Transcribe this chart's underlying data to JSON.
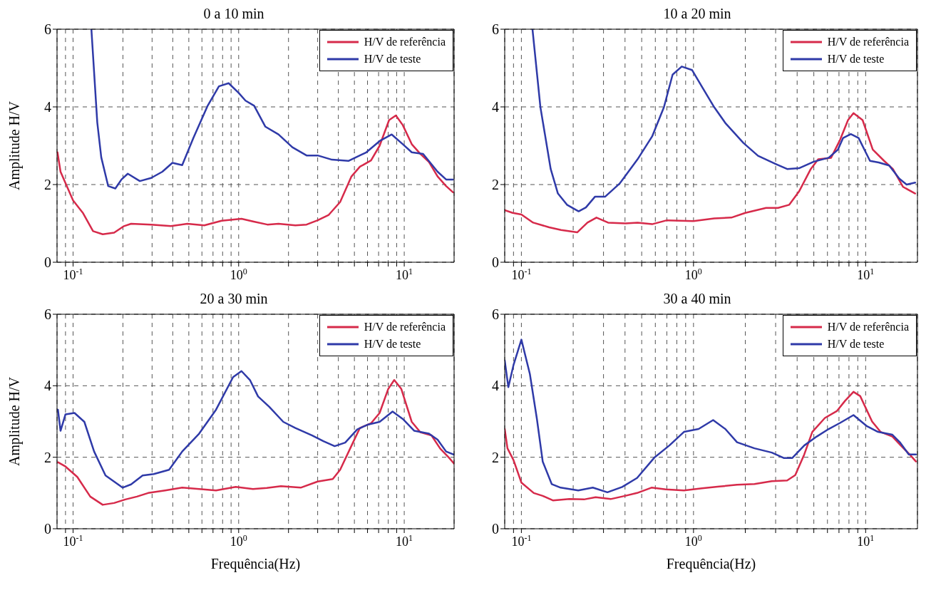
{
  "chart_data": [
    {
      "type": "line",
      "title": "0 a 10 min",
      "ylabel": "Amplitude H/V",
      "log": "x",
      "grid": true,
      "legend": "top right",
      "xlim": [
        0.08,
        20
      ],
      "ylim": [
        0,
        6
      ],
      "yticks": [
        0,
        2,
        4,
        6
      ],
      "xticks": [
        {
          "value": 0.09,
          "label": null
        },
        {
          "value": 0.1,
          "label": "10$^{-1}$"
        },
        {
          "value": 0.2,
          "label": null
        },
        {
          "value": 0.3,
          "label": null
        },
        {
          "value": 0.4,
          "label": null
        },
        {
          "value": 0.5,
          "label": null
        },
        {
          "value": 0.6,
          "label": null
        },
        {
          "value": 0.7,
          "label": null
        },
        {
          "value": 0.8,
          "label": null
        },
        {
          "value": 0.9,
          "label": null
        },
        {
          "value": 1,
          "label": "10$^{0}$"
        },
        {
          "value": 2,
          "label": null
        },
        {
          "value": 3,
          "label": null
        },
        {
          "value": 4,
          "label": null
        },
        {
          "value": 5,
          "label": null
        },
        {
          "value": 6,
          "label": null
        },
        {
          "value": 7,
          "label": null
        },
        {
          "value": 8,
          "label": null
        },
        {
          "value": 9,
          "label": null
        },
        {
          "value": 10,
          "label": "10$^{1}$"
        }
      ],
      "series": [
        {
          "name": "H/V de referência",
          "color": "#d62a4a",
          "x": [
            0.0805,
            0.084,
            0.1,
            0.115,
            0.132,
            0.151,
            0.177,
            0.203,
            0.224,
            0.296,
            0.39,
            0.49,
            0.62,
            0.79,
            1.04,
            1.22,
            1.49,
            1.74,
            2.2,
            2.57,
            3.0,
            3.5,
            4.1,
            4.8,
            5.4,
            6.3,
            7.1,
            8.1,
            8.9,
            9.8,
            11.1,
            12.5,
            14.1,
            15.9,
            17.9,
            19.7
          ],
          "values": [
            2.83,
            2.33,
            1.59,
            1.26,
            0.8,
            0.72,
            0.76,
            0.93,
            0.99,
            0.97,
            0.93,
            0.99,
            0.95,
            1.07,
            1.12,
            1.05,
            0.97,
            0.99,
            0.95,
            0.97,
            1.08,
            1.22,
            1.55,
            2.21,
            2.46,
            2.62,
            3.0,
            3.66,
            3.78,
            3.53,
            3.04,
            2.79,
            2.58,
            2.21,
            1.96,
            1.8
          ]
        },
        {
          "name": "H/V de teste",
          "color": "#2f3aa8",
          "x": [
            0.129,
            0.14,
            0.148,
            0.163,
            0.18,
            0.196,
            0.214,
            0.253,
            0.296,
            0.346,
            0.398,
            0.456,
            0.533,
            0.65,
            0.76,
            0.87,
            1.0,
            1.1,
            1.24,
            1.45,
            1.74,
            2.11,
            2.57,
            3.0,
            3.66,
            4.6,
            5.9,
            7.1,
            8.4,
            9.8,
            11.1,
            13.0,
            15.9,
            17.9,
            19.7
          ],
          "values": [
            6.0,
            3.6,
            2.7,
            1.96,
            1.9,
            2.13,
            2.28,
            2.09,
            2.17,
            2.33,
            2.56,
            2.5,
            3.2,
            4.03,
            4.53,
            4.61,
            4.36,
            4.16,
            4.03,
            3.49,
            3.29,
            2.96,
            2.75,
            2.75,
            2.64,
            2.61,
            2.83,
            3.12,
            3.29,
            3.04,
            2.83,
            2.79,
            2.33,
            2.13,
            2.13
          ]
        }
      ]
    },
    {
      "type": "line",
      "title": "10 a 20 min",
      "log": "x",
      "grid": true,
      "legend": "top right",
      "xlim": [
        0.08,
        20
      ],
      "ylim": [
        0,
        6
      ],
      "yticks": [
        0,
        2,
        4,
        6
      ],
      "xticks": [
        {
          "value": 0.09,
          "label": null
        },
        {
          "value": 0.1,
          "label": "10$^{-1}$"
        },
        {
          "value": 0.2,
          "label": null
        },
        {
          "value": 0.3,
          "label": null
        },
        {
          "value": 0.4,
          "label": null
        },
        {
          "value": 0.5,
          "label": null
        },
        {
          "value": 0.6,
          "label": null
        },
        {
          "value": 0.7,
          "label": null
        },
        {
          "value": 0.8,
          "label": null
        },
        {
          "value": 0.9,
          "label": null
        },
        {
          "value": 1,
          "label": "10$^{0}$"
        },
        {
          "value": 2,
          "label": null
        },
        {
          "value": 3,
          "label": null
        },
        {
          "value": 4,
          "label": null
        },
        {
          "value": 5,
          "label": null
        },
        {
          "value": 6,
          "label": null
        },
        {
          "value": 7,
          "label": null
        },
        {
          "value": 8,
          "label": null
        },
        {
          "value": 9,
          "label": null
        },
        {
          "value": 10,
          "label": "10$^{1}$"
        }
      ],
      "series": [
        {
          "name": "H/V de referência",
          "color": "#d62a4a",
          "x": [
            0.08,
            0.089,
            0.1,
            0.117,
            0.145,
            0.17,
            0.211,
            0.242,
            0.273,
            0.319,
            0.403,
            0.473,
            0.575,
            0.7,
            1.0,
            1.32,
            1.66,
            2.0,
            2.64,
            3.1,
            3.6,
            4.1,
            4.8,
            5.3,
            6.3,
            7.1,
            7.9,
            8.5,
            9.6,
            11.0,
            12.8,
            14.4,
            16.5,
            19.4
          ],
          "values": [
            1.34,
            1.27,
            1.23,
            1.02,
            0.9,
            0.83,
            0.77,
            1.02,
            1.15,
            1.02,
            1.0,
            1.02,
            0.98,
            1.08,
            1.06,
            1.13,
            1.15,
            1.27,
            1.4,
            1.4,
            1.48,
            1.82,
            2.4,
            2.65,
            2.69,
            3.15,
            3.66,
            3.84,
            3.66,
            2.9,
            2.61,
            2.4,
            1.94,
            1.77
          ]
        },
        {
          "name": "H/V de teste",
          "color": "#2f3aa8",
          "x": [
            0.116,
            0.129,
            0.148,
            0.163,
            0.184,
            0.215,
            0.237,
            0.268,
            0.307,
            0.373,
            0.473,
            0.575,
            0.673,
            0.756,
            0.854,
            0.98,
            1.13,
            1.32,
            1.54,
            1.95,
            2.37,
            3.0,
            3.5,
            4.1,
            5.0,
            6.1,
            6.9,
            7.4,
            8.2,
            9.1,
            10.6,
            11.9,
            13.7,
            15.7,
            17.3,
            19.4
          ],
          "values": [
            6.0,
            3.99,
            2.4,
            1.77,
            1.48,
            1.31,
            1.41,
            1.69,
            1.69,
            2.03,
            2.65,
            3.24,
            3.99,
            4.83,
            5.04,
            4.95,
            4.49,
            3.99,
            3.57,
            3.07,
            2.74,
            2.53,
            2.4,
            2.42,
            2.59,
            2.69,
            2.9,
            3.2,
            3.3,
            3.2,
            2.61,
            2.57,
            2.49,
            2.15,
            2.0,
            2.05
          ]
        }
      ]
    },
    {
      "type": "line",
      "title": "20 a 30 min",
      "xlabel": "Frequência(Hz)",
      "ylabel": "Amplitude H/V",
      "log": "x",
      "grid": true,
      "legend": "top right",
      "xlim": [
        0.08,
        20
      ],
      "ylim": [
        0,
        6
      ],
      "yticks": [
        0,
        2,
        4,
        6
      ],
      "xticks": [
        {
          "value": 0.09,
          "label": null
        },
        {
          "value": 0.1,
          "label": "10$^{-1}$"
        },
        {
          "value": 0.2,
          "label": null
        },
        {
          "value": 0.3,
          "label": null
        },
        {
          "value": 0.4,
          "label": null
        },
        {
          "value": 0.5,
          "label": null
        },
        {
          "value": 0.6,
          "label": null
        },
        {
          "value": 0.7,
          "label": null
        },
        {
          "value": 0.8,
          "label": null
        },
        {
          "value": 0.9,
          "label": null
        },
        {
          "value": 1,
          "label": "10$^{0}$"
        },
        {
          "value": 2,
          "label": null
        },
        {
          "value": 3,
          "label": null
        },
        {
          "value": 4,
          "label": null
        },
        {
          "value": 5,
          "label": null
        },
        {
          "value": 6,
          "label": null
        },
        {
          "value": 7,
          "label": null
        },
        {
          "value": 8,
          "label": null
        },
        {
          "value": 9,
          "label": null
        },
        {
          "value": 10,
          "label": "10$^{1}$"
        }
      ],
      "series": [
        {
          "name": "H/V de referência",
          "color": "#d62a4a",
          "x": [
            0.081,
            0.09,
            0.106,
            0.127,
            0.151,
            0.177,
            0.207,
            0.243,
            0.284,
            0.36,
            0.456,
            0.577,
            0.73,
            0.96,
            1.22,
            1.48,
            1.8,
            2.37,
            3.0,
            3.7,
            4.1,
            4.9,
            5.4,
            6.3,
            7.1,
            8.0,
            8.7,
            9.6,
            11.1,
            12.5,
            14.6,
            16.5,
            18.6,
            20
          ],
          "values": [
            1.86,
            1.74,
            1.45,
            0.9,
            0.67,
            0.72,
            0.82,
            0.9,
            1.0,
            1.07,
            1.15,
            1.11,
            1.07,
            1.17,
            1.11,
            1.14,
            1.19,
            1.15,
            1.32,
            1.39,
            1.65,
            2.41,
            2.82,
            2.95,
            3.24,
            3.91,
            4.16,
            3.91,
            2.99,
            2.7,
            2.61,
            2.24,
            1.99,
            1.82
          ]
        },
        {
          "name": "H/V de teste",
          "color": "#2f3aa8",
          "x": [
            0.081,
            0.084,
            0.09,
            0.102,
            0.117,
            0.134,
            0.157,
            0.199,
            0.224,
            0.263,
            0.307,
            0.38,
            0.456,
            0.577,
            0.73,
            0.925,
            1.04,
            1.17,
            1.31,
            1.53,
            1.86,
            2.2,
            2.78,
            3.25,
            3.8,
            4.4,
            5.2,
            6.0,
            7.1,
            8.5,
            9.8,
            11.5,
            14.1,
            15.9,
            17.9,
            20
          ],
          "values": [
            3.33,
            2.74,
            3.2,
            3.24,
            2.99,
            2.16,
            1.49,
            1.15,
            1.24,
            1.49,
            1.53,
            1.65,
            2.16,
            2.66,
            3.33,
            4.24,
            4.41,
            4.16,
            3.7,
            3.41,
            2.99,
            2.82,
            2.61,
            2.45,
            2.31,
            2.41,
            2.78,
            2.91,
            2.99,
            3.28,
            3.07,
            2.74,
            2.66,
            2.49,
            2.16,
            2.07
          ]
        }
      ]
    },
    {
      "type": "line",
      "title": "30 a 40 min",
      "xlabel": "Frequência(Hz)",
      "log": "x",
      "grid": true,
      "legend": "top right",
      "xlim": [
        0.08,
        20
      ],
      "ylim": [
        0,
        6
      ],
      "yticks": [
        0,
        2,
        4,
        6
      ],
      "xticks": [
        {
          "value": 0.09,
          "label": null
        },
        {
          "value": 0.1,
          "label": "10$^{-1}$"
        },
        {
          "value": 0.2,
          "label": null
        },
        {
          "value": 0.3,
          "label": null
        },
        {
          "value": 0.4,
          "label": null
        },
        {
          "value": 0.5,
          "label": null
        },
        {
          "value": 0.6,
          "label": null
        },
        {
          "value": 0.7,
          "label": null
        },
        {
          "value": 0.8,
          "label": null
        },
        {
          "value": 0.9,
          "label": null
        },
        {
          "value": 1,
          "label": "10$^{0}$"
        },
        {
          "value": 2,
          "label": null
        },
        {
          "value": 3,
          "label": null
        },
        {
          "value": 4,
          "label": null
        },
        {
          "value": 5,
          "label": null
        },
        {
          "value": 6,
          "label": null
        },
        {
          "value": 7,
          "label": null
        },
        {
          "value": 8,
          "label": null
        },
        {
          "value": 9,
          "label": null
        },
        {
          "value": 10,
          "label": "10$^{1}$"
        }
      ],
      "series": [
        {
          "name": "H/V de referência",
          "color": "#d62a4a",
          "x": [
            0.08,
            0.083,
            0.09,
            0.1,
            0.118,
            0.133,
            0.153,
            0.19,
            0.231,
            0.27,
            0.33,
            0.4,
            0.47,
            0.57,
            0.69,
            0.88,
            1.12,
            1.41,
            1.79,
            2.26,
            2.85,
            3.5,
            3.9,
            4.4,
            4.9,
            5.8,
            6.8,
            7.6,
            8.5,
            9.3,
            10.9,
            12.2,
            14.3,
            16.0,
            18.0,
            19.6
          ],
          "values": [
            2.79,
            2.25,
            1.92,
            1.29,
            1.0,
            0.92,
            0.79,
            0.83,
            0.82,
            0.88,
            0.83,
            0.92,
            1.0,
            1.15,
            1.1,
            1.07,
            1.13,
            1.18,
            1.23,
            1.25,
            1.33,
            1.35,
            1.5,
            2.08,
            2.71,
            3.1,
            3.29,
            3.58,
            3.83,
            3.71,
            3.0,
            2.71,
            2.58,
            2.33,
            2.08,
            1.88
          ]
        },
        {
          "name": "H/V de teste",
          "color": "#2f3aa8",
          "x": [
            0.08,
            0.084,
            0.09,
            0.1,
            0.112,
            0.123,
            0.133,
            0.15,
            0.169,
            0.214,
            0.26,
            0.316,
            0.385,
            0.47,
            0.595,
            0.724,
            0.88,
            1.07,
            1.3,
            1.53,
            1.79,
            2.26,
            2.85,
            3.34,
            3.75,
            4.4,
            5.2,
            6.1,
            7.1,
            8.5,
            10.1,
            11.8,
            14.3,
            15.8,
            17.8,
            19.6
          ],
          "values": [
            4.71,
            3.96,
            4.58,
            5.29,
            4.33,
            3.08,
            1.88,
            1.25,
            1.15,
            1.07,
            1.15,
            1.02,
            1.17,
            1.42,
            2.0,
            2.33,
            2.71,
            2.79,
            3.04,
            2.79,
            2.42,
            2.25,
            2.13,
            1.98,
            1.98,
            2.33,
            2.58,
            2.79,
            2.96,
            3.18,
            2.88,
            2.71,
            2.63,
            2.42,
            2.08,
            2.08
          ]
        }
      ]
    }
  ]
}
